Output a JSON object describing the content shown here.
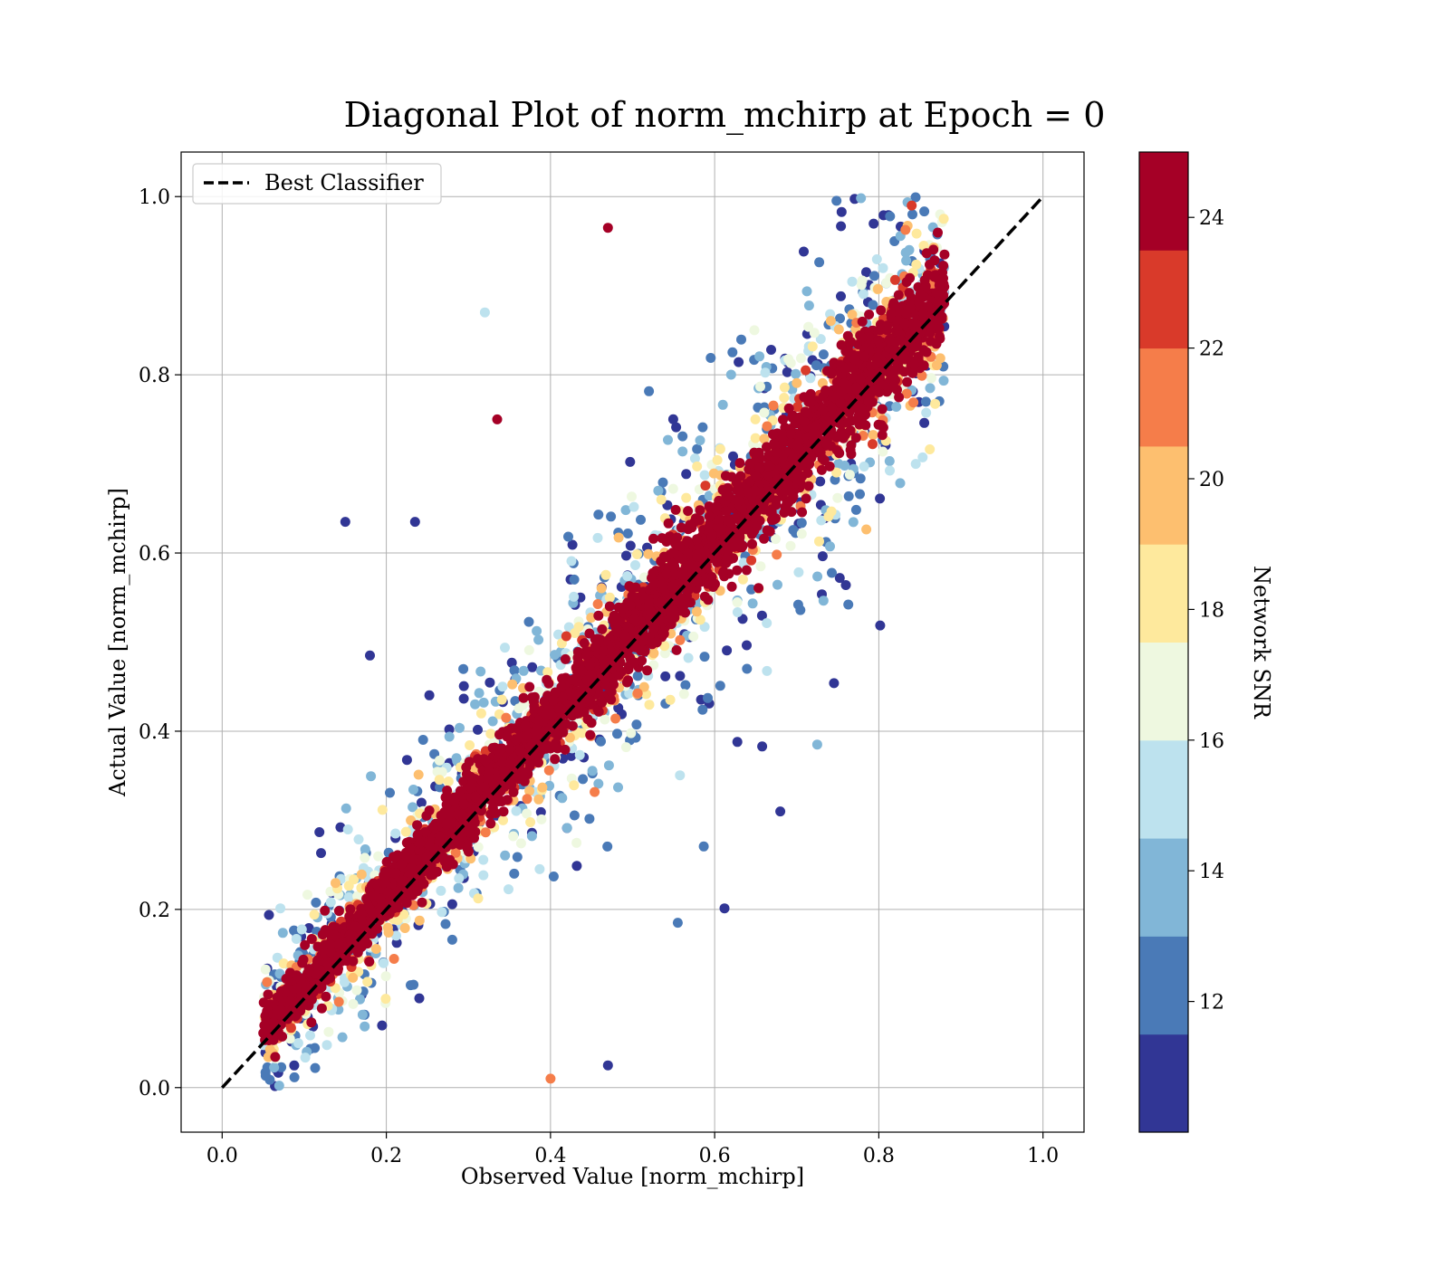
{
  "chart_data": {
    "type": "scatter",
    "title": "Diagonal Plot of norm_mchirp at Epoch = 0",
    "xlabel": "Observed Value [norm_mchirp]",
    "ylabel": "Actual Value [norm_mchirp]",
    "xlim": [
      -0.05,
      1.05
    ],
    "ylim": [
      -0.05,
      1.05
    ],
    "xticks": [
      "0.0",
      "0.2",
      "0.4",
      "0.6",
      "0.8",
      "1.0"
    ],
    "yticks": [
      "0.0",
      "0.2",
      "0.4",
      "0.6",
      "0.8",
      "1.0"
    ],
    "grid": true,
    "legend": {
      "position": "top-left",
      "entries": [
        "Best Classifier"
      ]
    },
    "reference_line": {
      "name": "Best Classifier",
      "style": "dashed",
      "color": "#000000",
      "x": [
        0.0,
        1.0
      ],
      "y": [
        0.0,
        1.0
      ]
    },
    "colorbar": {
      "label": "Network SNR",
      "range": [
        10,
        25
      ],
      "ticks": [
        "12",
        "14",
        "16",
        "18",
        "20",
        "22",
        "24"
      ],
      "tick_values": [
        12,
        14,
        16,
        18,
        20,
        22,
        24
      ],
      "bands": [
        {
          "from": 10.0,
          "to": 11.5,
          "color": "#313695"
        },
        {
          "from": 11.5,
          "to": 13.0,
          "color": "#4a7ab7"
        },
        {
          "from": 13.0,
          "to": 14.5,
          "color": "#81b6d7"
        },
        {
          "from": 14.5,
          "to": 16.0,
          "color": "#bde2ee"
        },
        {
          "from": 16.0,
          "to": 17.5,
          "color": "#eef8e0"
        },
        {
          "from": 17.5,
          "to": 19.0,
          "color": "#fee99d"
        },
        {
          "from": 19.0,
          "to": 20.5,
          "color": "#fdbf6f"
        },
        {
          "from": 20.5,
          "to": 22.0,
          "color": "#f57d4a"
        },
        {
          "from": 22.0,
          "to": 23.5,
          "color": "#d93a2a"
        },
        {
          "from": 23.5,
          "to": 25.0,
          "color": "#a50026"
        }
      ]
    },
    "notable_points": [
      {
        "x": 0.15,
        "y": 0.635,
        "snr": 10
      },
      {
        "x": 0.235,
        "y": 0.635,
        "snr": 10
      },
      {
        "x": 0.18,
        "y": 0.485,
        "snr": 10
      },
      {
        "x": 0.32,
        "y": 0.87,
        "snr": 15
      },
      {
        "x": 0.47,
        "y": 0.965,
        "snr": 25
      },
      {
        "x": 0.4,
        "y": 0.01,
        "snr": 21
      },
      {
        "x": 0.47,
        "y": 0.025,
        "snr": 10
      },
      {
        "x": 0.335,
        "y": 0.75,
        "snr": 25
      },
      {
        "x": 0.68,
        "y": 0.31,
        "snr": 10
      },
      {
        "x": 0.725,
        "y": 0.385,
        "snr": 14
      },
      {
        "x": 0.88,
        "y": 0.935,
        "snr": 25
      },
      {
        "x": 0.845,
        "y": 0.7,
        "snr": 15
      },
      {
        "x": 0.555,
        "y": 0.185,
        "snr": 12
      },
      {
        "x": 0.87,
        "y": 0.895,
        "snr": 16
      },
      {
        "x": 0.84,
        "y": 0.99,
        "snr": 22
      }
    ],
    "distribution": {
      "x_range": [
        0.05,
        0.88
      ],
      "y_range": [
        0.0,
        1.0
      ],
      "points_drawn": 5200,
      "note": "high-SNR (red) points cluster tightly along the diagonal; low-SNR (blue) points spread wider"
    }
  }
}
